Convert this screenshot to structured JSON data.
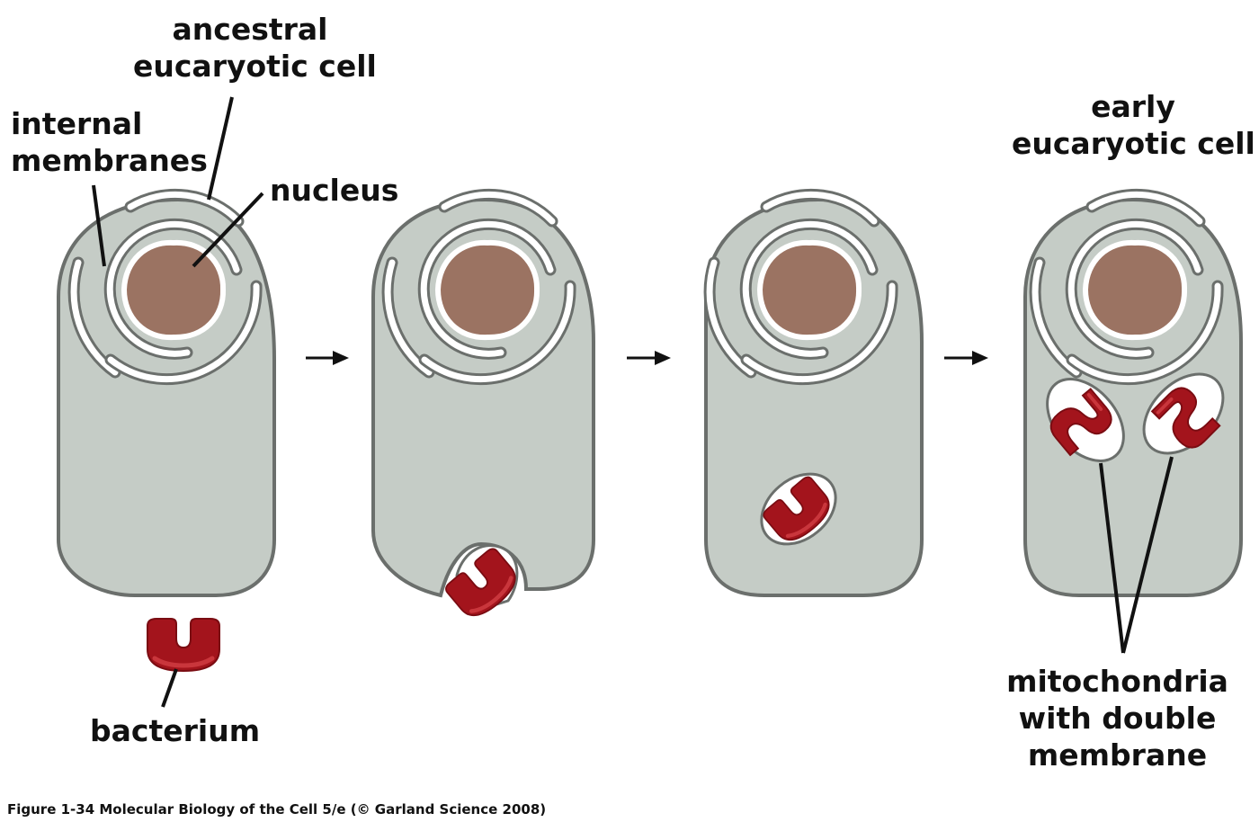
{
  "figure": {
    "labels": {
      "ancestral_line1": "ancestral",
      "ancestral_line2": "eucaryotic cell",
      "internal_line1": "internal",
      "internal_line2": "membranes",
      "nucleus": "nucleus",
      "bacterium": "bacterium",
      "early_line1": "early",
      "early_line2": "eucaryotic cell",
      "mito_line1": "mitochondria",
      "mito_line2": "with double",
      "mito_line3": "membrane"
    },
    "caption": "Figure 1-34  Molecular Biology of the Cell 5/e (© Garland Science 2008)"
  },
  "colors": {
    "cell_fill": "#c5ccc6",
    "cell_stroke": "#6b6f6c",
    "nucleus_fill": "#9b7362",
    "mito_fill": "#a3141c",
    "mito_highlight": "#c9363c",
    "membrane": "#ffffff",
    "ink": "#111111"
  }
}
